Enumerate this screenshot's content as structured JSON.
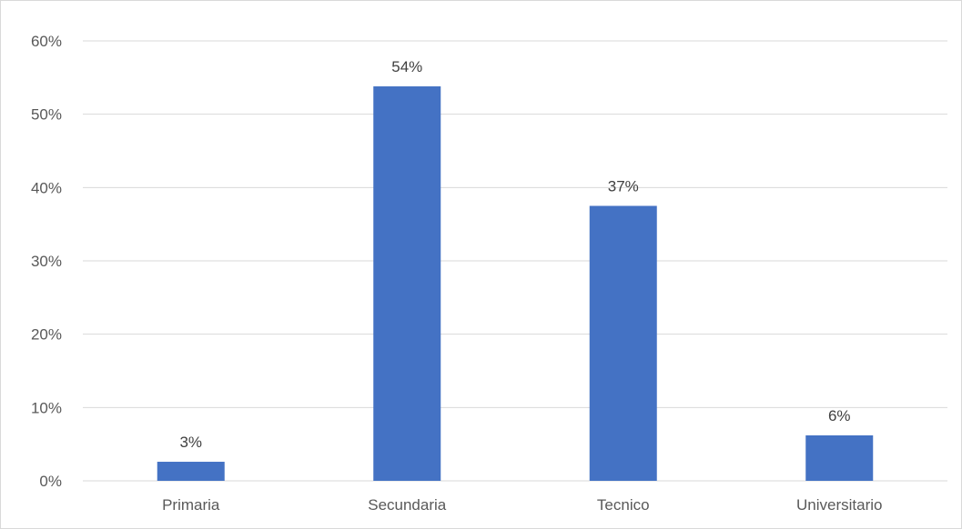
{
  "chart_data": {
    "type": "bar",
    "categories": [
      "Primaria",
      "Secundaria",
      "Tecnico",
      "Universitario"
    ],
    "values": [
      2.6,
      53.8,
      37.5,
      6.2
    ],
    "data_labels": [
      "3%",
      "54%",
      "37%",
      "6%"
    ],
    "ylim": [
      0,
      60
    ],
    "yticks": [
      0,
      10,
      20,
      30,
      40,
      50,
      60
    ],
    "ytick_labels": [
      "0%",
      "10%",
      "20%",
      "30%",
      "40%",
      "50%",
      "60%"
    ],
    "title": "",
    "xlabel": "",
    "ylabel": "",
    "grid": true,
    "legend": "none",
    "colors": {
      "bar": "#4472c4",
      "grid": "#d9d9d9",
      "axis": "#d9d9d9",
      "text": "#595959"
    }
  }
}
